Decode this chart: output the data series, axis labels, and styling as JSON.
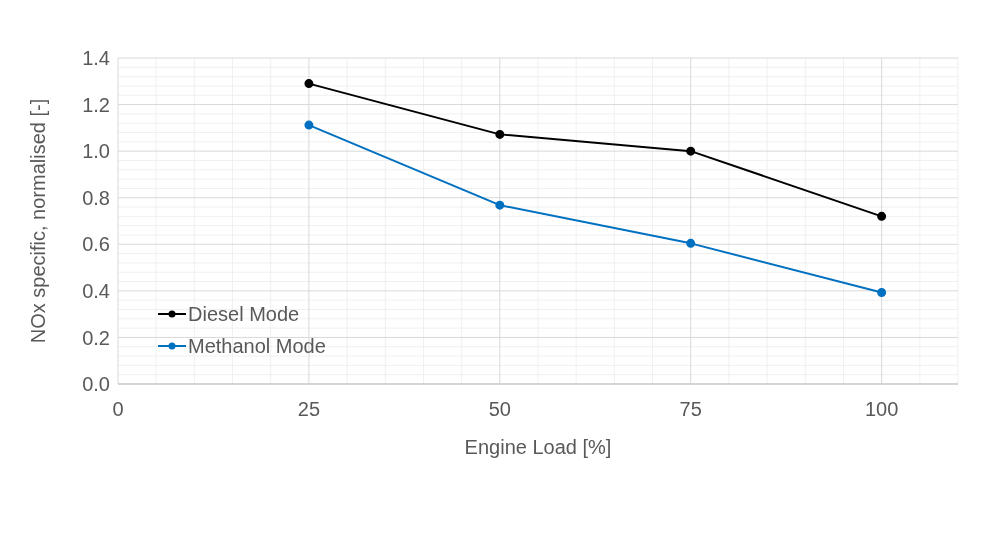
{
  "chart_data": {
    "type": "line",
    "xlabel": "Engine Load [%]",
    "ylabel": "NOx specific, normalised [-]",
    "x": [
      25,
      50,
      75,
      100
    ],
    "series": [
      {
        "name": "Diesel Mode",
        "color": "#000000",
        "values": [
          1.29,
          1.072,
          1.0,
          0.72
        ]
      },
      {
        "name": "Methanol Mode",
        "color": "#0070c0",
        "values": [
          1.112,
          0.768,
          0.604,
          0.393
        ]
      }
    ],
    "xlim": [
      0,
      110
    ],
    "xticks": [
      0,
      {
        "value": 5,
        "label": null
      },
      {
        "value": 10,
        "label": null
      },
      {
        "value": 15,
        "label": null
      },
      {
        "value": 20,
        "label": null
      },
      25,
      {
        "value": 30,
        "label": null
      },
      {
        "value": 35,
        "label": null
      },
      {
        "value": 40,
        "label": null
      },
      {
        "value": 45,
        "label": null
      },
      50,
      {
        "value": 55,
        "label": null
      },
      {
        "value": 60,
        "label": null
      },
      {
        "value": 65,
        "label": null
      },
      {
        "value": 70,
        "label": null
      },
      75,
      {
        "value": 80,
        "label": null
      },
      {
        "value": 85,
        "label": null
      },
      {
        "value": 90,
        "label": null
      },
      {
        "value": 95,
        "label": null
      },
      100,
      {
        "value": 105,
        "label": null
      },
      {
        "value": 110,
        "label": null
      }
    ],
    "ylim": [
      0,
      1.4
    ],
    "yticks": [
      {
        "value": 0,
        "label": "0.0"
      },
      {
        "value": 0.04,
        "label": null
      },
      {
        "value": 0.08,
        "label": null
      },
      {
        "value": 0.12,
        "label": null
      },
      {
        "value": 0.16,
        "label": null
      },
      {
        "value": 0.2,
        "label": "0.2"
      },
      {
        "value": 0.24,
        "label": null
      },
      {
        "value": 0.28,
        "label": null
      },
      {
        "value": 0.32,
        "label": null
      },
      {
        "value": 0.36,
        "label": null
      },
      {
        "value": 0.4,
        "label": "0.4"
      },
      {
        "value": 0.44,
        "label": null
      },
      {
        "value": 0.48,
        "label": null
      },
      {
        "value": 0.52,
        "label": null
      },
      {
        "value": 0.56,
        "label": null
      },
      {
        "value": 0.6,
        "label": "0.6"
      },
      {
        "value": 0.64,
        "label": null
      },
      {
        "value": 0.68,
        "label": null
      },
      {
        "value": 0.72,
        "label": null
      },
      {
        "value": 0.76,
        "label": null
      },
      {
        "value": 0.8,
        "label": "0.8"
      },
      {
        "value": 0.84,
        "label": null
      },
      {
        "value": 0.88,
        "label": null
      },
      {
        "value": 0.92,
        "label": null
      },
      {
        "value": 0.96,
        "label": null
      },
      {
        "value": 1.0,
        "label": "1.0"
      },
      {
        "value": 1.04,
        "label": null
      },
      {
        "value": 1.08,
        "label": null
      },
      {
        "value": 1.12,
        "label": null
      },
      {
        "value": 1.16,
        "label": null
      },
      {
        "value": 1.2,
        "label": "1.2"
      },
      {
        "value": 1.24,
        "label": null
      },
      {
        "value": 1.28,
        "label": null
      },
      {
        "value": 1.32,
        "label": null
      },
      {
        "value": 1.36,
        "label": null
      },
      {
        "value": 1.4,
        "label": "1.4"
      }
    ],
    "grid": true,
    "legend": "bottom left",
    "marker": "circle",
    "line_style": "solid"
  }
}
